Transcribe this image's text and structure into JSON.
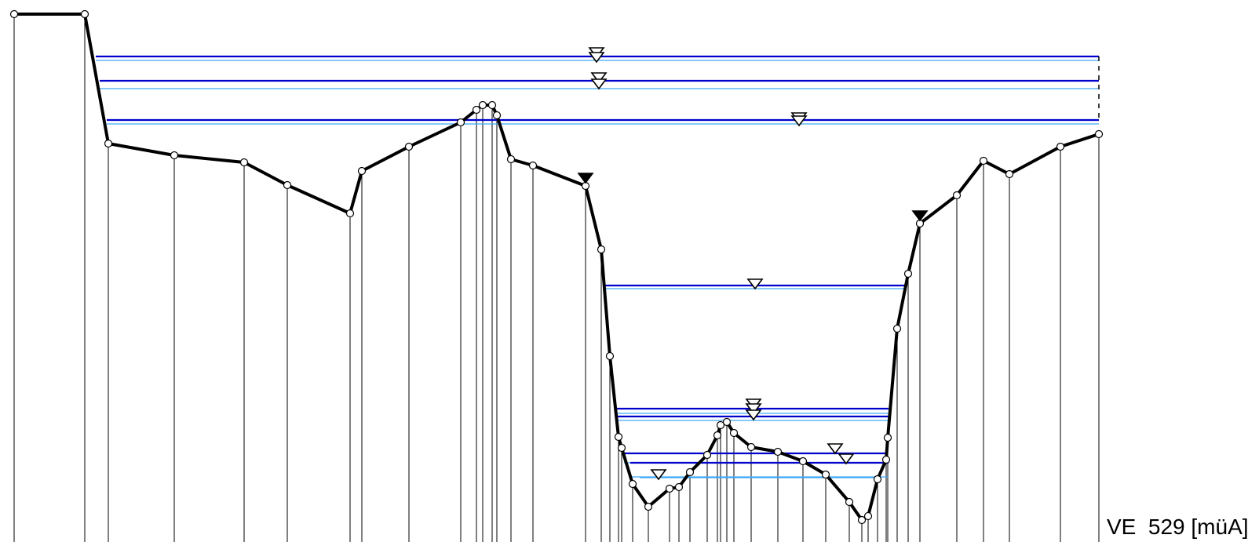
{
  "label": "VE  529 [müA]",
  "colors": {
    "profile": "#000000",
    "water_level_dark": "#0000cc",
    "water_level_light": "#3fa9f5",
    "markers": "#000000"
  },
  "icons": {
    "water_surface": "hollow-down-triangle",
    "bank_marker": "filled-down-triangle"
  }
}
